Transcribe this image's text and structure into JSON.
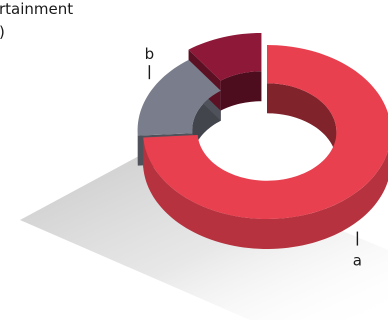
{
  "chart_data": {
    "type": "pie",
    "variant": "3d-donut",
    "title_lines": [
      "rtainment",
      ")"
    ],
    "slices": [
      {
        "label": "a",
        "value": 74,
        "color": "#e8404f"
      },
      {
        "label": "b",
        "value": 16,
        "color": "#7a7e8c"
      },
      {
        "label": "",
        "value": 10,
        "color": "#8e1838"
      }
    ],
    "legend": "none"
  }
}
